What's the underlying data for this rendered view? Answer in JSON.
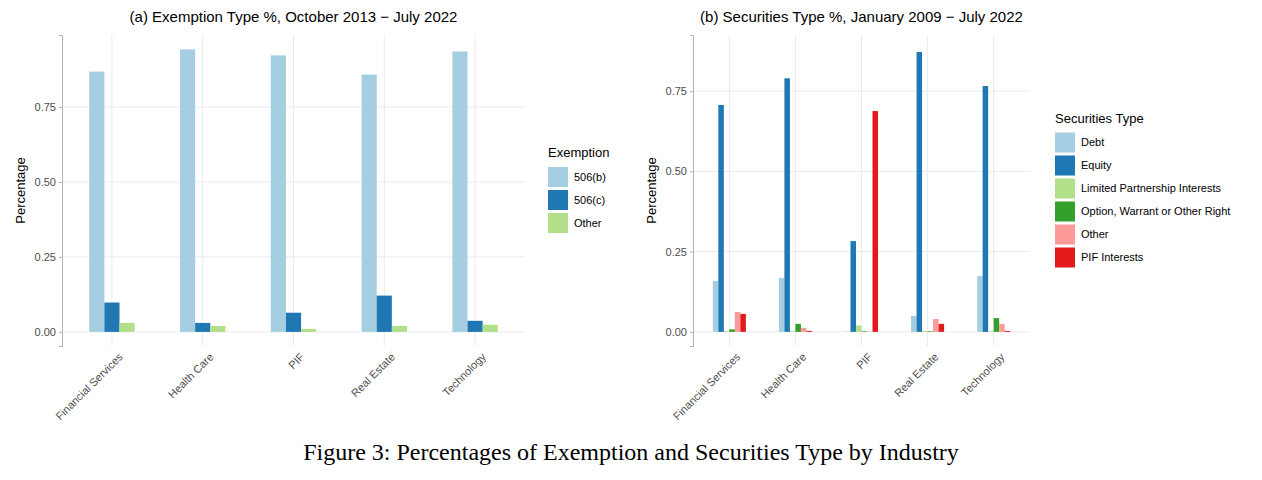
{
  "caption": "Figure 3: Percentages of Exemption and Securities Type by Industry",
  "chart_data": [
    {
      "type": "bar",
      "title": "(a) Exemption Type %, October 2013 − July 2022",
      "y_label": "Percentage",
      "legend_title": "Exemption",
      "legend": "right",
      "grid": true,
      "categories": [
        "Financial Services",
        "Health Care",
        "PIF",
        "Real Estate",
        "Technology"
      ],
      "series": [
        {
          "name": "506(b)",
          "color": "#a6cee3",
          "values": [
            0.868,
            0.942,
            0.922,
            0.858,
            0.935
          ]
        },
        {
          "name": "506(c)",
          "color": "#1f78b4",
          "values": [
            0.098,
            0.03,
            0.064,
            0.121,
            0.037
          ]
        },
        {
          "name": "Other",
          "color": "#b2df8a",
          "values": [
            0.03,
            0.02,
            0.01,
            0.02,
            0.024
          ]
        }
      ],
      "ylim": [
        -0.047,
        0.99
      ],
      "yticks": [
        {
          "value": 0,
          "label": "0.00"
        },
        0.25,
        {
          "value": 0.5,
          "label": "0.50"
        },
        0.75
      ]
    },
    {
      "type": "bar",
      "title": "(b) Securities Type %, January 2009 − July 2022",
      "y_label": "Percentage",
      "legend_title": "Securities Type",
      "legend": "right",
      "grid": true,
      "categories": [
        "Financial Services",
        "Health Care",
        "PIF",
        "Real Estate",
        "Technology"
      ],
      "series": [
        {
          "name": "Debt",
          "color": "#a6cee3",
          "values": [
            0.159,
            0.168,
            0.001,
            0.05,
            0.174
          ]
        },
        {
          "name": "Equity",
          "color": "#1f78b4",
          "values": [
            0.707,
            0.79,
            0.283,
            0.872,
            0.766
          ]
        },
        {
          "name": "Limited Partnership Interests",
          "color": "#b2df8a",
          "values": [
            0.002,
            0.002,
            0.02,
            0.003,
            0.002
          ]
        },
        {
          "name": "Option, Warrant or Other Right",
          "color": "#33a02c",
          "values": [
            0.008,
            0.025,
            0.002,
            0.002,
            0.043
          ]
        },
        {
          "name": "Other",
          "color": "#fb9a99",
          "values": [
            0.062,
            0.012,
            0.001,
            0.04,
            0.025
          ]
        },
        {
          "name": "PIF Interests",
          "color": "#e31a1c",
          "values": [
            0.056,
            0.003,
            0.688,
            0.025,
            0.003
          ]
        }
      ],
      "ylim": [
        -0.044,
        0.925
      ],
      "yticks": [
        {
          "value": 0,
          "label": "0.00"
        },
        0.25,
        {
          "value": 0.5,
          "label": "0.50"
        },
        0.75
      ]
    }
  ]
}
